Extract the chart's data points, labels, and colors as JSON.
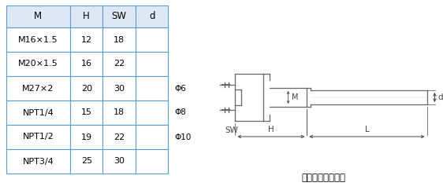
{
  "table_headers": [
    "M",
    "H",
    "SW",
    "d"
  ],
  "table_rows": [
    [
      "M16×1.5",
      "12",
      "18",
      ""
    ],
    [
      "M20×1.5",
      "16",
      "22",
      ""
    ],
    [
      "M27×2",
      "20",
      "30",
      ""
    ],
    [
      "NPT1/4",
      "15",
      "18",
      ""
    ],
    [
      "NPT1/2",
      "19",
      "22",
      ""
    ],
    [
      "NPT3/4",
      "25",
      "30",
      ""
    ]
  ],
  "phi_labels": [
    "Φ6",
    "Φ8",
    "Φ10"
  ],
  "phi_row_indices": [
    2,
    3,
    4
  ],
  "header_bg": "#dce9f5",
  "border_color": "#5b9bd5",
  "text_color": "#000000",
  "diagram_label": "可动外螺紋管接头",
  "background_color": "#ffffff"
}
